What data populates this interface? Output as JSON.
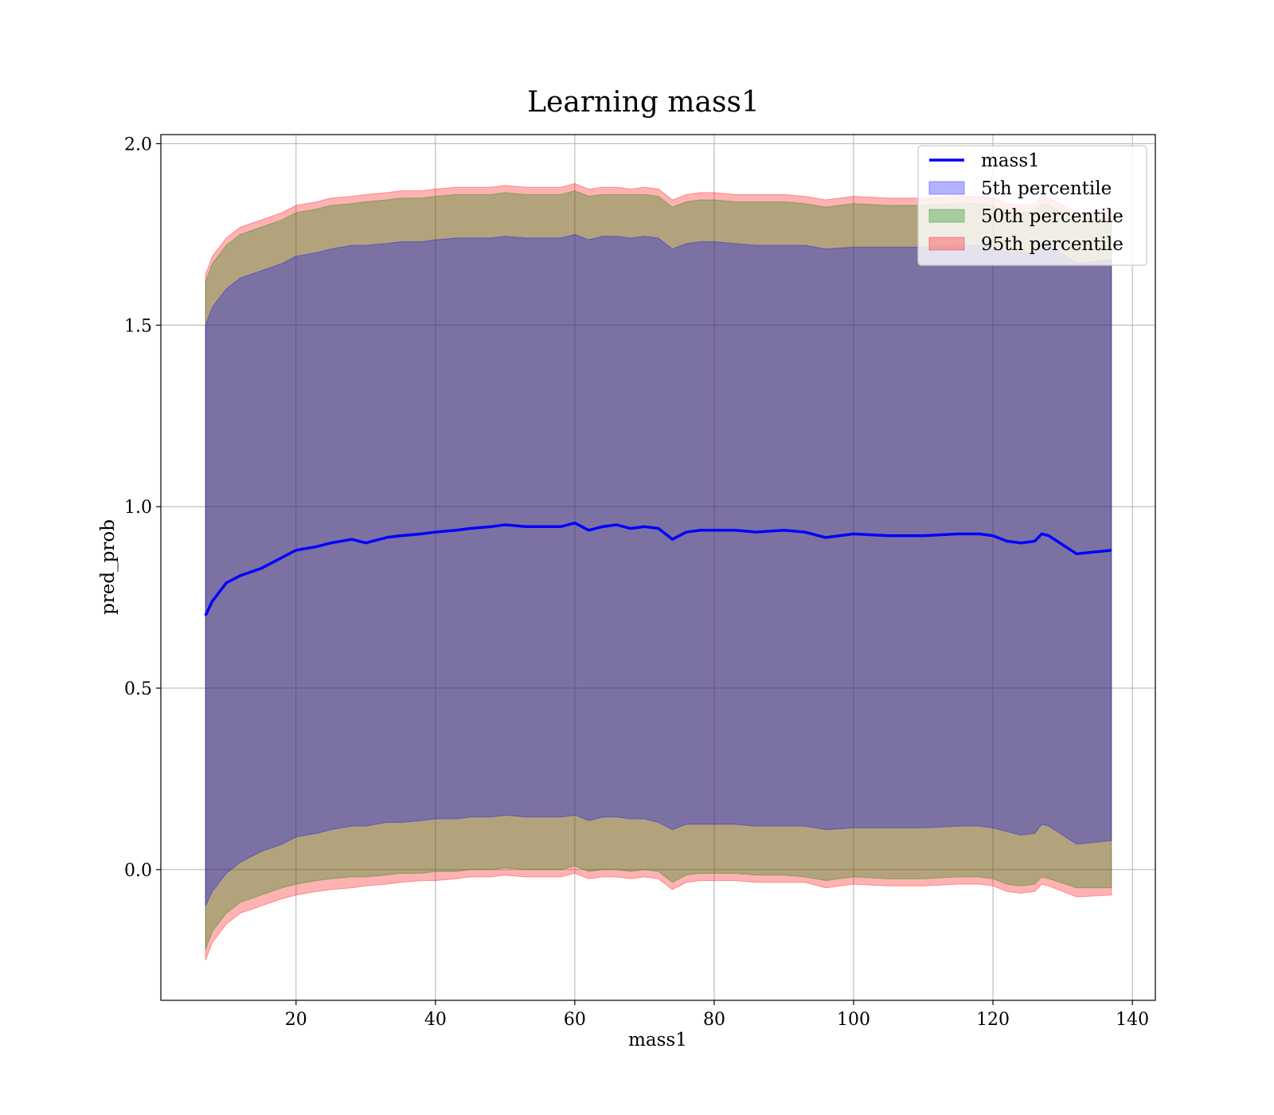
{
  "chart_data": {
    "type": "area",
    "title": "Learning mass1",
    "xlabel": "mass1",
    "ylabel": "pred_prob",
    "xlim": [
      0.6,
      143.3
    ],
    "ylim": [
      -0.36,
      2.025
    ],
    "xticks": [
      20,
      40,
      60,
      80,
      100,
      120,
      140
    ],
    "yticks": [
      0.0,
      0.5,
      1.0,
      1.5,
      2.0
    ],
    "xtick_labels": [
      "20",
      "40",
      "60",
      "80",
      "100",
      "120",
      "140"
    ],
    "ytick_labels": [
      "0.0",
      "0.5",
      "1.0",
      "1.5",
      "2.0"
    ],
    "grid": true,
    "legend_position": "top-right",
    "x": [
      7,
      8,
      10,
      12,
      15,
      18,
      20,
      23,
      25,
      28,
      30,
      33,
      35,
      38,
      40,
      43,
      45,
      48,
      50,
      53,
      55,
      58,
      60,
      62,
      64,
      66,
      68,
      70,
      72,
      74,
      76,
      78,
      80,
      83,
      86,
      90,
      93,
      96,
      100,
      105,
      110,
      115,
      118,
      120,
      122,
      124,
      126,
      127,
      128,
      132,
      137
    ],
    "series": [
      {
        "name": "mass1",
        "kind": "line",
        "color": "#0000ff",
        "values": [
          0.7,
          0.74,
          0.79,
          0.81,
          0.83,
          0.86,
          0.88,
          0.89,
          0.9,
          0.91,
          0.9,
          0.915,
          0.92,
          0.925,
          0.93,
          0.935,
          0.94,
          0.945,
          0.95,
          0.945,
          0.945,
          0.945,
          0.955,
          0.935,
          0.945,
          0.95,
          0.94,
          0.945,
          0.94,
          0.91,
          0.93,
          0.935,
          0.935,
          0.935,
          0.93,
          0.935,
          0.93,
          0.915,
          0.925,
          0.92,
          0.92,
          0.925,
          0.925,
          0.92,
          0.905,
          0.9,
          0.905,
          0.925,
          0.92,
          0.87,
          0.88
        ]
      },
      {
        "name": "5th percentile",
        "kind": "band",
        "color": "#0000ff",
        "lower": [
          -0.1,
          -0.06,
          -0.01,
          0.02,
          0.05,
          0.07,
          0.09,
          0.1,
          0.11,
          0.12,
          0.12,
          0.13,
          0.13,
          0.135,
          0.14,
          0.14,
          0.145,
          0.145,
          0.15,
          0.145,
          0.145,
          0.145,
          0.15,
          0.135,
          0.145,
          0.145,
          0.14,
          0.14,
          0.13,
          0.11,
          0.125,
          0.125,
          0.125,
          0.125,
          0.12,
          0.12,
          0.12,
          0.11,
          0.115,
          0.115,
          0.115,
          0.12,
          0.12,
          0.115,
          0.105,
          0.095,
          0.1,
          0.125,
          0.12,
          0.07,
          0.08
        ],
        "upper": [
          1.5,
          1.55,
          1.6,
          1.63,
          1.65,
          1.67,
          1.69,
          1.7,
          1.71,
          1.72,
          1.72,
          1.725,
          1.73,
          1.73,
          1.735,
          1.74,
          1.74,
          1.74,
          1.745,
          1.74,
          1.74,
          1.74,
          1.75,
          1.735,
          1.745,
          1.745,
          1.74,
          1.745,
          1.74,
          1.71,
          1.725,
          1.73,
          1.73,
          1.725,
          1.72,
          1.72,
          1.72,
          1.71,
          1.715,
          1.715,
          1.715,
          1.72,
          1.72,
          1.715,
          1.7,
          1.7,
          1.7,
          1.72,
          1.72,
          1.67,
          1.68
        ]
      },
      {
        "name": "50th percentile",
        "kind": "band",
        "color": "#008000",
        "lower": [
          -0.22,
          -0.17,
          -0.12,
          -0.09,
          -0.07,
          -0.05,
          -0.04,
          -0.03,
          -0.025,
          -0.02,
          -0.02,
          -0.015,
          -0.01,
          -0.01,
          -0.005,
          -0.005,
          0.0,
          0.0,
          0.005,
          0.0,
          0.0,
          0.0,
          0.01,
          -0.005,
          0.0,
          0.0,
          -0.005,
          0.0,
          -0.005,
          -0.035,
          -0.015,
          -0.01,
          -0.01,
          -0.01,
          -0.015,
          -0.015,
          -0.02,
          -0.03,
          -0.02,
          -0.025,
          -0.025,
          -0.02,
          -0.02,
          -0.025,
          -0.04,
          -0.045,
          -0.04,
          -0.02,
          -0.025,
          -0.05,
          -0.05
        ],
        "upper": [
          1.62,
          1.67,
          1.72,
          1.75,
          1.77,
          1.79,
          1.81,
          1.82,
          1.83,
          1.835,
          1.84,
          1.845,
          1.85,
          1.85,
          1.855,
          1.86,
          1.86,
          1.86,
          1.865,
          1.86,
          1.86,
          1.86,
          1.87,
          1.855,
          1.86,
          1.86,
          1.86,
          1.86,
          1.855,
          1.825,
          1.84,
          1.845,
          1.845,
          1.84,
          1.84,
          1.84,
          1.835,
          1.825,
          1.835,
          1.83,
          1.83,
          1.835,
          1.835,
          1.83,
          1.815,
          1.81,
          1.815,
          1.835,
          1.83,
          1.79,
          1.795
        ]
      },
      {
        "name": "95th percentile",
        "kind": "band",
        "color": "#ff0000",
        "lower": [
          -0.25,
          -0.2,
          -0.15,
          -0.12,
          -0.1,
          -0.08,
          -0.07,
          -0.06,
          -0.055,
          -0.05,
          -0.045,
          -0.04,
          -0.035,
          -0.03,
          -0.03,
          -0.025,
          -0.02,
          -0.02,
          -0.015,
          -0.02,
          -0.02,
          -0.02,
          -0.01,
          -0.025,
          -0.02,
          -0.02,
          -0.025,
          -0.02,
          -0.025,
          -0.055,
          -0.035,
          -0.03,
          -0.03,
          -0.03,
          -0.035,
          -0.035,
          -0.035,
          -0.05,
          -0.04,
          -0.045,
          -0.045,
          -0.04,
          -0.04,
          -0.045,
          -0.06,
          -0.065,
          -0.06,
          -0.04,
          -0.045,
          -0.075,
          -0.07
        ],
        "upper": [
          1.64,
          1.69,
          1.74,
          1.77,
          1.79,
          1.81,
          1.83,
          1.84,
          1.85,
          1.855,
          1.86,
          1.865,
          1.87,
          1.87,
          1.875,
          1.88,
          1.88,
          1.88,
          1.885,
          1.88,
          1.88,
          1.88,
          1.89,
          1.875,
          1.88,
          1.88,
          1.875,
          1.88,
          1.875,
          1.845,
          1.86,
          1.865,
          1.865,
          1.86,
          1.86,
          1.86,
          1.855,
          1.845,
          1.855,
          1.85,
          1.85,
          1.855,
          1.855,
          1.85,
          1.835,
          1.83,
          1.835,
          1.855,
          1.85,
          1.81,
          1.815
        ]
      }
    ],
    "legend": [
      {
        "label": "mass1",
        "kind": "line",
        "color": "#0000ff"
      },
      {
        "label": "5th percentile",
        "kind": "patch",
        "color": "#0000ff"
      },
      {
        "label": "50th percentile",
        "kind": "patch",
        "color": "#008000"
      },
      {
        "label": "95th percentile",
        "kind": "patch",
        "color": "#ff0000"
      }
    ]
  }
}
